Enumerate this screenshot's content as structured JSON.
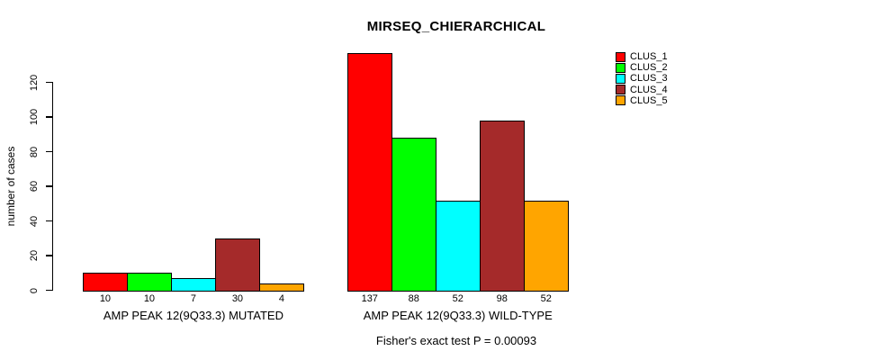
{
  "chart_data": {
    "type": "bar",
    "title": "MIRSEQ_CHIERARCHICAL",
    "ylabel": "number of cases",
    "xlabel": "Fisher's exact test P = 0.00093",
    "categories": [
      "AMP PEAK 12(9Q33.3) MUTATED",
      "AMP PEAK 12(9Q33.3) WILD-TYPE"
    ],
    "series": [
      {
        "name": "CLUS_1",
        "color": "#FF0000",
        "values": [
          10,
          137
        ]
      },
      {
        "name": "CLUS_2",
        "color": "#00FF00",
        "values": [
          10,
          88
        ]
      },
      {
        "name": "CLUS_3",
        "color": "#00FFFF",
        "values": [
          7,
          52
        ]
      },
      {
        "name": "CLUS_4",
        "color": "#A52A2A",
        "values": [
          30,
          98
        ]
      },
      {
        "name": "CLUS_5",
        "color": "#FFA500",
        "values": [
          4,
          52
        ]
      }
    ],
    "bar_value_labels": [
      [
        "10",
        "10",
        "7",
        "30",
        "4"
      ],
      [
        "137",
        "88",
        "52",
        "98",
        "52"
      ]
    ],
    "yticks": [
      0,
      20,
      40,
      60,
      80,
      100,
      120
    ],
    "ylim": [
      0,
      137
    ],
    "grid": false,
    "legend_position": "top-right",
    "background_color": "#FFFFFF",
    "bar_border_color": "#000000"
  }
}
